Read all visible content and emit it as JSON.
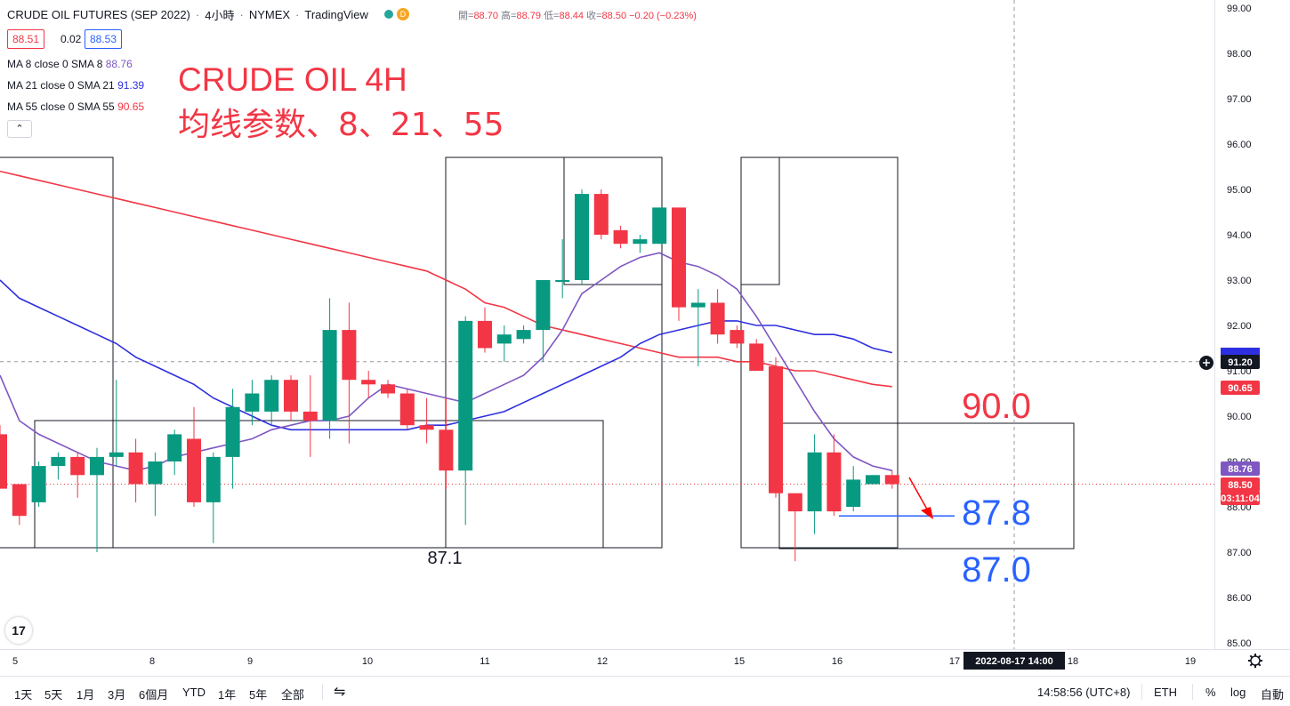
{
  "header": {
    "symbol": "CRUDE OIL FUTURES (SEP 2022)",
    "interval": "4小時",
    "exchange": "NYMEX",
    "source": "TradingView",
    "badge_d": "D",
    "ohlc": {
      "open_label": "開=",
      "open": "88.70",
      "high_label": "高=",
      "high": "88.79",
      "low_label": "低=",
      "low": "88.44",
      "close_label": "收=",
      "close": "88.50",
      "change": "−0.20 (−0.23%)"
    }
  },
  "quote": {
    "bid": "88.51",
    "spread": "0.02",
    "ask": "88.53"
  },
  "indicators": [
    {
      "label": "MA 8 close 0 SMA 8",
      "value": "88.76",
      "color": "#7e57c2"
    },
    {
      "label": "MA 21 close 0 SMA 21",
      "value": "91.39",
      "color": "#2d2fe0"
    },
    {
      "label": "MA 55 close 0 SMA 55",
      "value": "90.65",
      "color": "#f23645"
    }
  ],
  "collapse_glyph": "⌃",
  "logo_text": "17",
  "chart_data": {
    "type": "candlestick",
    "title": "CRUDE OIL 4H",
    "subtitle": "均线参数、8、21、55",
    "ylim": [
      84.6,
      99.2
    ],
    "y_ticks": [
      "99.00",
      "98.00",
      "97.00",
      "96.00",
      "95.00",
      "94.00",
      "93.00",
      "92.00",
      "91.00",
      "90.00",
      "89.00",
      "88.00",
      "87.00",
      "86.00",
      "85.00"
    ],
    "x_ticks": [
      "5",
      "8",
      "9",
      "10",
      "11",
      "12",
      "15",
      "16",
      "17",
      "18",
      "19"
    ],
    "candles": [
      {
        "o": 89.6,
        "h": 89.8,
        "l": 88.4,
        "c": 88.4
      },
      {
        "o": 88.5,
        "h": 88.5,
        "l": 87.6,
        "c": 87.8
      },
      {
        "o": 88.1,
        "h": 89.0,
        "l": 88.0,
        "c": 88.9
      },
      {
        "o": 88.9,
        "h": 89.2,
        "l": 88.6,
        "c": 89.1
      },
      {
        "o": 89.1,
        "h": 89.2,
        "l": 88.2,
        "c": 88.7
      },
      {
        "o": 88.7,
        "h": 89.3,
        "l": 87.0,
        "c": 89.1
      },
      {
        "o": 89.1,
        "h": 90.8,
        "l": 88.9,
        "c": 89.2
      },
      {
        "o": 89.2,
        "h": 89.5,
        "l": 88.1,
        "c": 88.5
      },
      {
        "o": 88.5,
        "h": 89.2,
        "l": 87.8,
        "c": 89.0
      },
      {
        "o": 89.0,
        "h": 89.7,
        "l": 88.7,
        "c": 89.6
      },
      {
        "o": 89.5,
        "h": 90.2,
        "l": 88.0,
        "c": 88.1
      },
      {
        "o": 88.1,
        "h": 89.2,
        "l": 87.2,
        "c": 89.1
      },
      {
        "o": 89.1,
        "h": 90.6,
        "l": 88.4,
        "c": 90.2
      },
      {
        "o": 90.1,
        "h": 90.8,
        "l": 89.8,
        "c": 90.5
      },
      {
        "o": 90.1,
        "h": 90.9,
        "l": 89.8,
        "c": 90.8
      },
      {
        "o": 90.8,
        "h": 90.9,
        "l": 89.9,
        "c": 90.1
      },
      {
        "o": 90.1,
        "h": 90.9,
        "l": 89.1,
        "c": 89.9
      },
      {
        "o": 89.9,
        "h": 92.6,
        "l": 89.5,
        "c": 91.9
      },
      {
        "o": 91.9,
        "h": 92.5,
        "l": 89.4,
        "c": 90.8
      },
      {
        "o": 90.8,
        "h": 91.0,
        "l": 90.4,
        "c": 90.7
      },
      {
        "o": 90.7,
        "h": 90.8,
        "l": 90.4,
        "c": 90.5
      },
      {
        "o": 90.5,
        "h": 90.6,
        "l": 89.7,
        "c": 89.8
      },
      {
        "o": 89.8,
        "h": 90.4,
        "l": 89.4,
        "c": 89.7
      },
      {
        "o": 89.7,
        "h": 90.4,
        "l": 88.4,
        "c": 88.8
      },
      {
        "o": 88.8,
        "h": 92.2,
        "l": 87.6,
        "c": 92.1
      },
      {
        "o": 92.1,
        "h": 92.4,
        "l": 91.4,
        "c": 91.5
      },
      {
        "o": 91.6,
        "h": 92.0,
        "l": 91.2,
        "c": 91.8
      },
      {
        "o": 91.7,
        "h": 92.0,
        "l": 91.6,
        "c": 91.9
      },
      {
        "o": 91.9,
        "h": 93.0,
        "l": 91.2,
        "c": 93.0
      },
      {
        "o": 93.0,
        "h": 93.9,
        "l": 92.6,
        "c": 93.0
      },
      {
        "o": 93.0,
        "h": 95.0,
        "l": 92.9,
        "c": 94.9
      },
      {
        "o": 94.9,
        "h": 95.0,
        "l": 93.9,
        "c": 94.0
      },
      {
        "o": 94.1,
        "h": 94.2,
        "l": 93.7,
        "c": 93.8
      },
      {
        "o": 93.8,
        "h": 94.0,
        "l": 93.6,
        "c": 93.9
      },
      {
        "o": 93.8,
        "h": 94.6,
        "l": 93.8,
        "c": 94.6
      },
      {
        "o": 94.6,
        "h": 94.6,
        "l": 92.1,
        "c": 92.4
      },
      {
        "o": 92.4,
        "h": 92.8,
        "l": 91.1,
        "c": 92.5
      },
      {
        "o": 92.5,
        "h": 92.8,
        "l": 91.6,
        "c": 91.8
      },
      {
        "o": 91.9,
        "h": 92.0,
        "l": 91.5,
        "c": 91.6
      },
      {
        "o": 91.6,
        "h": 91.7,
        "l": 91.0,
        "c": 91.0
      },
      {
        "o": 91.1,
        "h": 91.3,
        "l": 88.2,
        "c": 88.3
      },
      {
        "o": 88.3,
        "h": 88.3,
        "l": 86.8,
        "c": 87.9
      },
      {
        "o": 87.9,
        "h": 89.6,
        "l": 87.4,
        "c": 89.2
      },
      {
        "o": 89.2,
        "h": 89.6,
        "l": 87.8,
        "c": 87.9
      },
      {
        "o": 88.0,
        "h": 88.9,
        "l": 87.9,
        "c": 88.6
      },
      {
        "o": 88.5,
        "h": 88.7,
        "l": 88.5,
        "c": 88.7
      },
      {
        "o": 88.7,
        "h": 88.8,
        "l": 88.4,
        "c": 88.5
      }
    ],
    "ma8": [
      90.9,
      89.9,
      89.6,
      89.4,
      89.2,
      89.0,
      88.9,
      88.8,
      88.9,
      89.1,
      89.2,
      89.3,
      89.4,
      89.5,
      89.7,
      89.8,
      89.9,
      89.9,
      90.0,
      90.4,
      90.7,
      90.6,
      90.5,
      90.4,
      90.3,
      90.5,
      90.7,
      90.9,
      91.3,
      91.9,
      92.7,
      93.0,
      93.3,
      93.5,
      93.6,
      93.4,
      93.3,
      93.1,
      92.8,
      92.2,
      91.5,
      90.8,
      90.1,
      89.5,
      89.1,
      88.9,
      88.8
    ],
    "ma21": [
      93.0,
      92.6,
      92.4,
      92.2,
      92.0,
      91.8,
      91.6,
      91.3,
      91.1,
      90.9,
      90.7,
      90.4,
      90.2,
      90.0,
      89.8,
      89.7,
      89.7,
      89.7,
      89.7,
      89.7,
      89.7,
      89.7,
      89.8,
      89.8,
      89.9,
      90.0,
      90.1,
      90.3,
      90.5,
      90.7,
      90.9,
      91.1,
      91.3,
      91.6,
      91.8,
      91.9,
      92.0,
      92.1,
      92.1,
      92.0,
      92.0,
      91.9,
      91.8,
      91.8,
      91.7,
      91.5,
      91.4
    ],
    "ma55": [
      95.4,
      95.3,
      95.2,
      95.1,
      95.0,
      94.9,
      94.8,
      94.7,
      94.6,
      94.5,
      94.4,
      94.3,
      94.2,
      94.1,
      94.0,
      93.9,
      93.8,
      93.7,
      93.6,
      93.5,
      93.4,
      93.3,
      93.2,
      93.0,
      92.8,
      92.5,
      92.4,
      92.2,
      92.0,
      91.9,
      91.8,
      91.7,
      91.6,
      91.5,
      91.4,
      91.3,
      91.3,
      91.3,
      91.2,
      91.2,
      91.1,
      91.0,
      91.0,
      90.9,
      90.8,
      90.7,
      90.65
    ],
    "ma8_color": "#7e57c2",
    "ma21_color": "#2d2fe0",
    "ma55_color": "#f23645",
    "up_color": "#089981",
    "down_color": "#f23645",
    "annotations": [
      {
        "text": "87.1",
        "color": "#131722"
      },
      {
        "text": "90.0",
        "color": "#f23645"
      },
      {
        "text": "87.8",
        "color": "#2962ff"
      },
      {
        "text": "87.0",
        "color": "#2962ff"
      }
    ],
    "price_labels": [
      {
        "text": "91.20",
        "bg": "#131722",
        "color": "#ffffff"
      },
      {
        "text": "90.65",
        "bg": "#f23645",
        "color": "#ffffff"
      },
      {
        "text": "88.76",
        "bg": "#7e57c2",
        "color": "#ffffff"
      },
      {
        "text": "88.50",
        "bg": "#f23645",
        "color": "#ffffff"
      },
      {
        "text": "03:11:04",
        "bg": "#f23645",
        "color": "#ffffff"
      }
    ],
    "crosshair": {
      "price": "91.20",
      "date": "2022-08-17",
      "time": "14:00"
    }
  },
  "bottom": {
    "ranges": [
      "1天",
      "5天",
      "1月",
      "3月",
      "6個月",
      "YTD",
      "1年",
      "5年",
      "全部"
    ],
    "compare_glyph": "⇋",
    "clock": "14:58:56 (UTC+8)",
    "session": "ETH",
    "pct": "%",
    "log": "log",
    "auto": "自動"
  }
}
